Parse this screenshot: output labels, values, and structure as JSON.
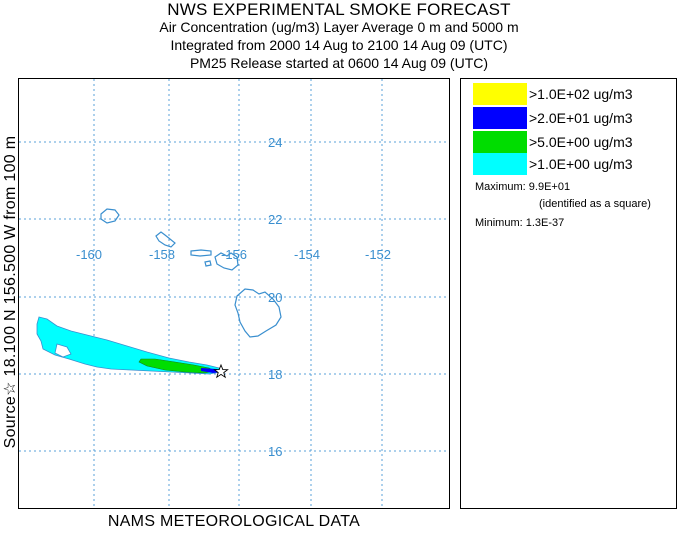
{
  "header": {
    "title": "NWS EXPERIMENTAL SMOKE FORECAST",
    "line2": "Air Concentration (ug/m3) Layer Average    0 m and  5000 m",
    "line3": "Integrated from 2000 14 Aug to 2100 14 Aug 09 (UTC)",
    "line4": "PM25 Release started at 0600 14 Aug 09 (UTC)"
  },
  "side_label": "Source☆ 18.100  N 156.500  W     from   100 m",
  "footer": "NAMS METEOROLOGICAL DATA",
  "map": {
    "grid_color": "#5aa0d8",
    "coast_color": "#3a8fcf",
    "lon_labels": [
      "-160",
      "-158",
      "-156",
      "-154",
      "-152"
    ],
    "lat_labels": [
      "24",
      "22",
      "20",
      "18",
      "16"
    ],
    "source_marker": "star-icon"
  },
  "legend": {
    "items": [
      {
        "label": ">1.0E+02 ug/m3",
        "color": "#ffff00"
      },
      {
        "label": ">2.0E+01 ug/m3",
        "color": "#0000ff"
      },
      {
        "label": ">5.0E+00 ug/m3",
        "color": "#00dd00"
      },
      {
        "label": ">1.0E+00 ug/m3",
        "color": "#00ffff"
      }
    ],
    "maximum": "Maximum: 9.9E+01",
    "identified": "(identified as a square)",
    "minimum": "Minimum: 1.3E-37"
  }
}
